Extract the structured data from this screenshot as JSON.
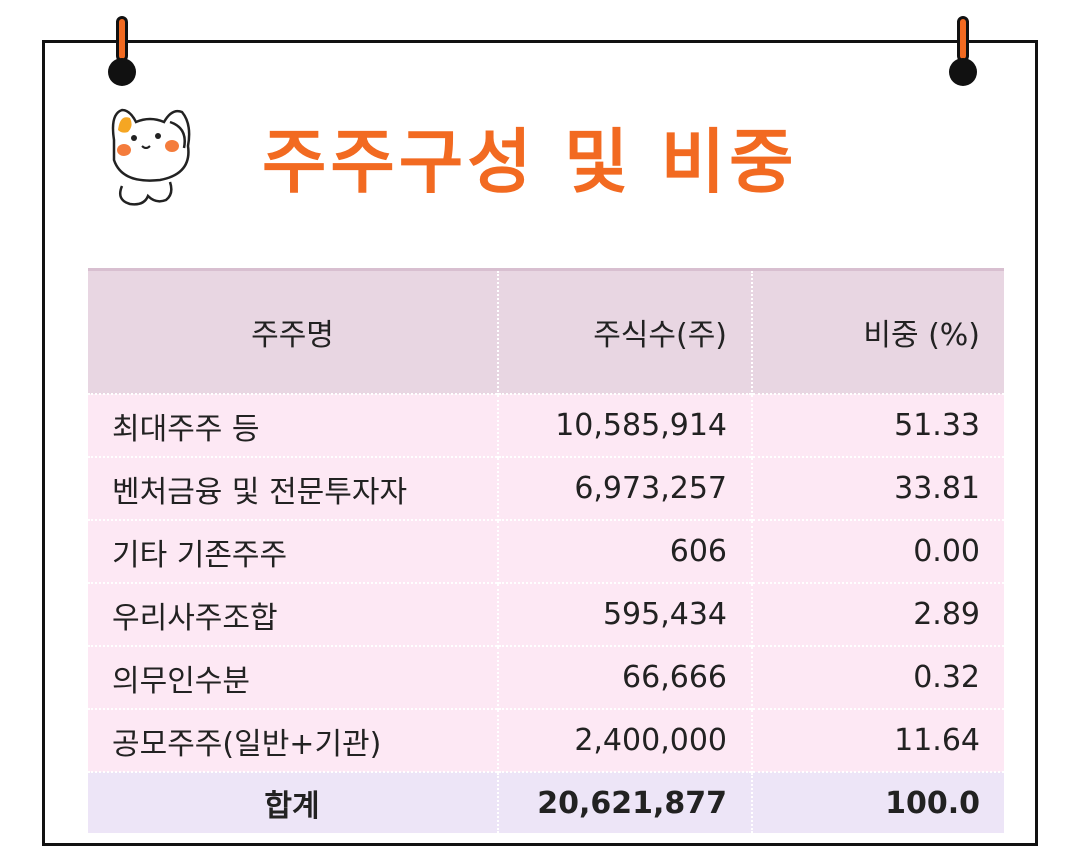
{
  "title": "주주구성 및 비중",
  "table": {
    "headers": [
      "주주명",
      "주식수(주)",
      "비중 (%)"
    ],
    "rows": [
      {
        "name": "최대주주 등",
        "shares": "10,585,914",
        "ratio": "51.33"
      },
      {
        "name": "벤처금융 및 전문투자자",
        "shares": "6,973,257",
        "ratio": "33.81"
      },
      {
        "name": "기타 기존주주",
        "shares": "606",
        "ratio": "0.00"
      },
      {
        "name": "우리사주조합",
        "shares": "595,434",
        "ratio": "2.89"
      },
      {
        "name": "의무인수분",
        "shares": "66,666",
        "ratio": "0.32"
      },
      {
        "name": "공모주주(일반+기관)",
        "shares": "2,400,000",
        "ratio": "11.64"
      }
    ],
    "total": {
      "name": "합계",
      "shares": "20,621,877",
      "ratio": "100.0"
    }
  },
  "colors": {
    "accent": "#f26a21",
    "header_bg": "#e8d6e2",
    "row_bg": "#fde8f4",
    "total_bg": "#ede5f7"
  }
}
